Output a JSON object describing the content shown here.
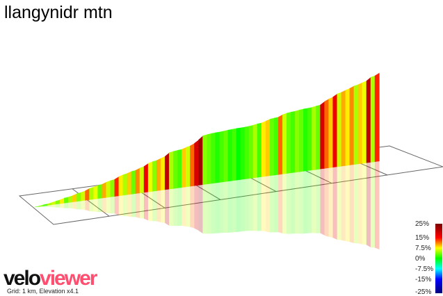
{
  "title": "llangynidr mtn",
  "chart_data": {
    "type": "area",
    "title": "llangynidr mtn",
    "segment_gradients_pct": [
      3,
      4,
      2,
      5,
      6,
      4,
      8,
      3,
      5,
      9,
      4,
      6,
      12,
      5,
      7,
      3,
      10,
      6,
      4,
      14,
      8,
      5,
      9,
      3,
      11,
      6,
      16,
      7,
      4,
      10,
      8,
      20,
      5,
      3,
      2,
      9,
      6,
      12,
      18,
      22,
      4,
      3,
      2,
      1,
      2,
      3,
      1,
      2,
      0,
      1,
      2,
      3,
      5,
      2,
      8,
      9,
      3,
      2,
      12,
      6,
      3,
      2,
      4,
      3,
      1,
      2,
      5,
      3,
      18,
      12,
      9,
      16,
      6,
      10,
      8,
      11,
      5,
      9,
      7,
      20,
      5,
      14
    ],
    "color_scale": {
      "labels": [
        "25%",
        "15%",
        "7.5%",
        "0%",
        "-7.5%",
        "-15%",
        "-25%"
      ],
      "colors": [
        "#7a0000",
        "#ff0000",
        "#ffff00",
        "#00ff00",
        "#00ffff",
        "#0000ff",
        "#00007a"
      ]
    },
    "note": "Grid: 1 km, Elevation x4.1"
  },
  "logo": {
    "part1": "velo",
    "part2": "viewer"
  }
}
